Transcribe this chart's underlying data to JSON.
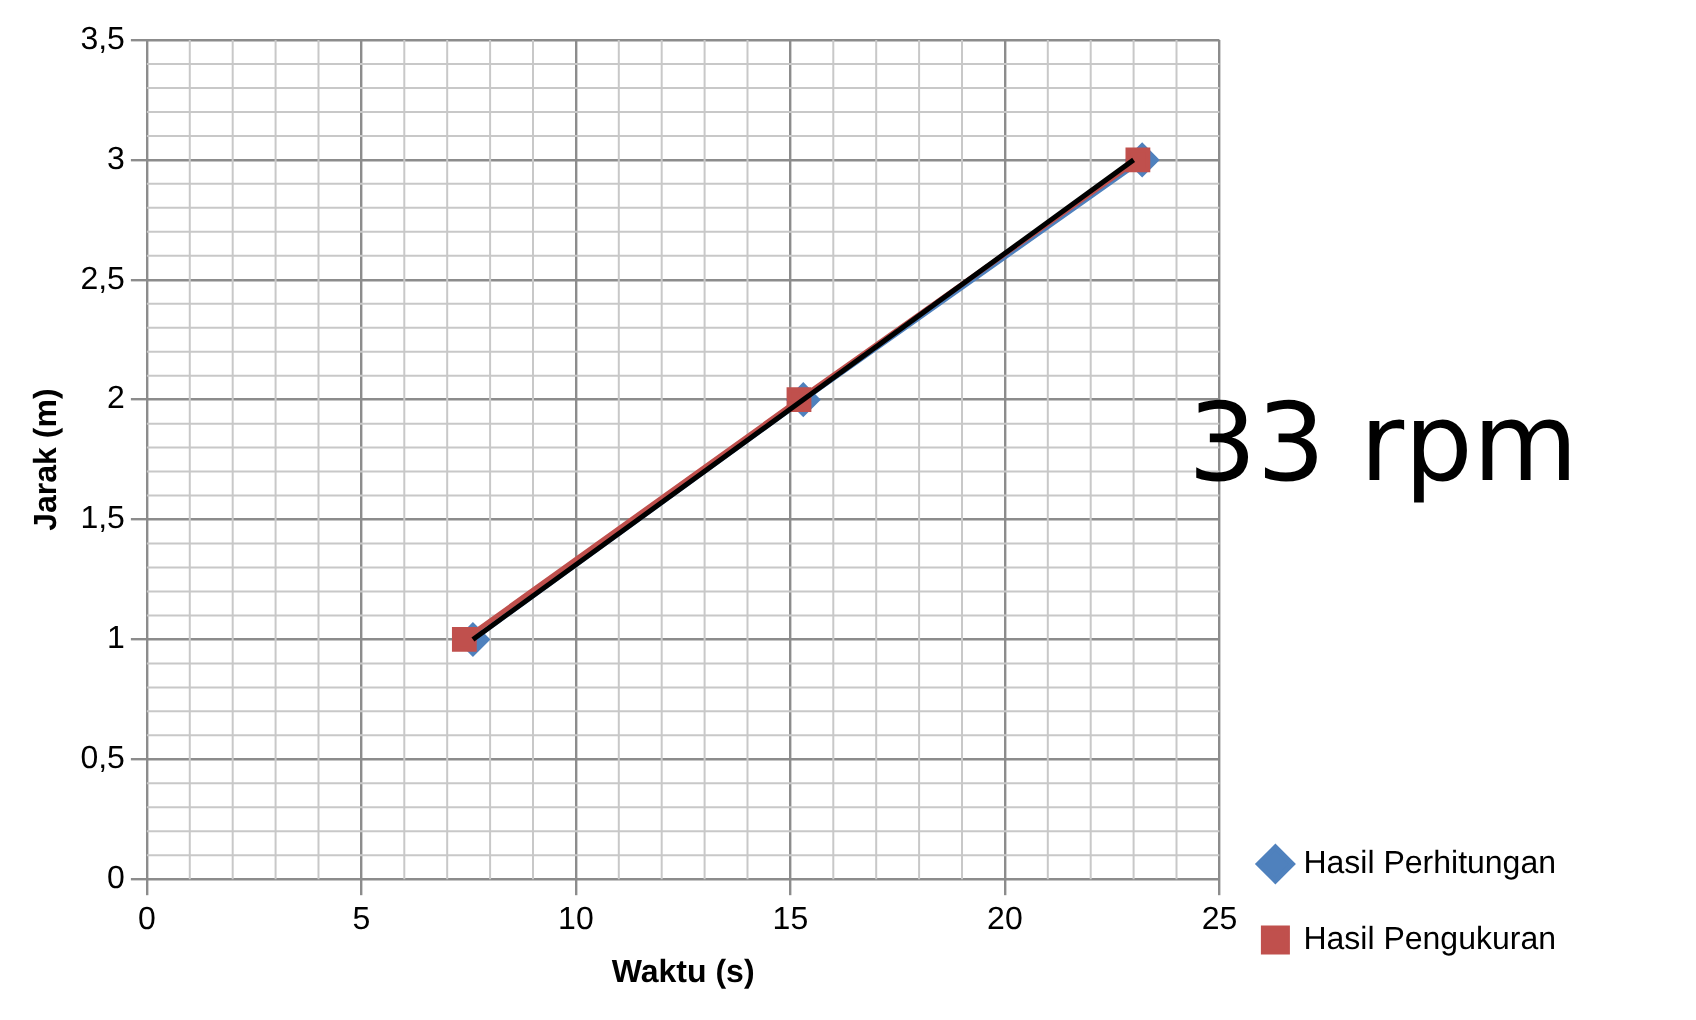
{
  "chart_data": {
    "type": "line",
    "xlabel": "Waktu (s)",
    "ylabel": "Jarak (m)",
    "annotations": [
      "33 rpm"
    ],
    "xlim": [
      0,
      25
    ],
    "xticks": [
      0,
      5,
      10,
      15,
      20,
      25
    ],
    "ylim": [
      0,
      3.5
    ],
    "yticks": [
      0,
      {
        "value": 0.5,
        "label": "0,5"
      },
      1,
      {
        "value": 1.5,
        "label": "1,5"
      },
      2,
      {
        "value": 2.5,
        "label": "2,5"
      },
      3,
      {
        "value": 3.5,
        "label": "3,5"
      }
    ],
    "grid": true,
    "legend": "bottom right",
    "line_style": "solid",
    "series": [
      {
        "name": "Hasil Perhitungan",
        "color": "#4f81bd",
        "marker": "diamond",
        "x": [
          7.6,
          15.3,
          23.2
        ],
        "values": [
          1,
          2,
          3
        ]
      },
      {
        "name": "Hasil Pengukuran",
        "color": "#c0504d",
        "marker": "square",
        "x": [
          7.4,
          15.2,
          23.1
        ],
        "values": [
          1,
          2,
          3
        ]
      },
      {
        "color": "#000000",
        "marker": "none",
        "x": [
          7.6,
          23.0
        ],
        "values": [
          1,
          3
        ]
      }
    ]
  }
}
